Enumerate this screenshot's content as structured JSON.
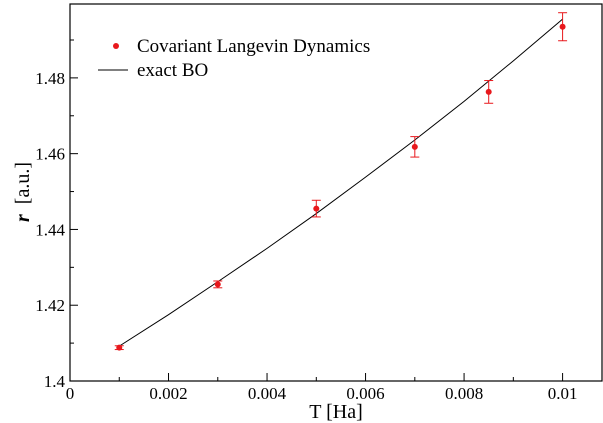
{
  "chart_data": {
    "type": "scatter",
    "xlabel": "T [Ha]",
    "ylabel_symbol": "r",
    "ylabel_unit": "[a.u.]",
    "xlim": [
      0,
      0.0108
    ],
    "ylim": [
      1.4,
      1.4995
    ],
    "x_ticks": [
      0,
      0.002,
      0.004,
      0.006,
      0.008,
      0.01
    ],
    "x_tick_labels": [
      "0",
      "0.002",
      "0.004",
      "0.006",
      "0.008",
      "0.01"
    ],
    "y_ticks": [
      1.4,
      1.42,
      1.44,
      1.46,
      1.48
    ],
    "y_tick_labels": [
      "1.4",
      "1.42",
      "1.44",
      "1.46",
      "1.48"
    ],
    "grid": false,
    "legend_position": "top-left",
    "series": [
      {
        "name": "Covariant Langevin Dynamics",
        "kind": "points-with-errorbars",
        "color": "#e8181c",
        "points": [
          {
            "x": 0.001,
            "y": 1.4088,
            "err": 0.0005
          },
          {
            "x": 0.003,
            "y": 1.4255,
            "err": 0.0009
          },
          {
            "x": 0.005,
            "y": 1.4455,
            "err": 0.0022
          },
          {
            "x": 0.007,
            "y": 1.4618,
            "err": 0.0027
          },
          {
            "x": 0.0085,
            "y": 1.4763,
            "err": 0.003
          },
          {
            "x": 0.01,
            "y": 1.4935,
            "err": 0.0037
          }
        ]
      },
      {
        "name": "exact BO",
        "kind": "line",
        "color": "#000000",
        "x": [
          0.001,
          0.002,
          0.003,
          0.004,
          0.005,
          0.006,
          0.007,
          0.008,
          0.009,
          0.01
        ],
        "y": [
          1.4092,
          1.4175,
          1.4262,
          1.435,
          1.4442,
          1.4538,
          1.4636,
          1.4738,
          1.4845,
          1.4955
        ]
      }
    ]
  }
}
